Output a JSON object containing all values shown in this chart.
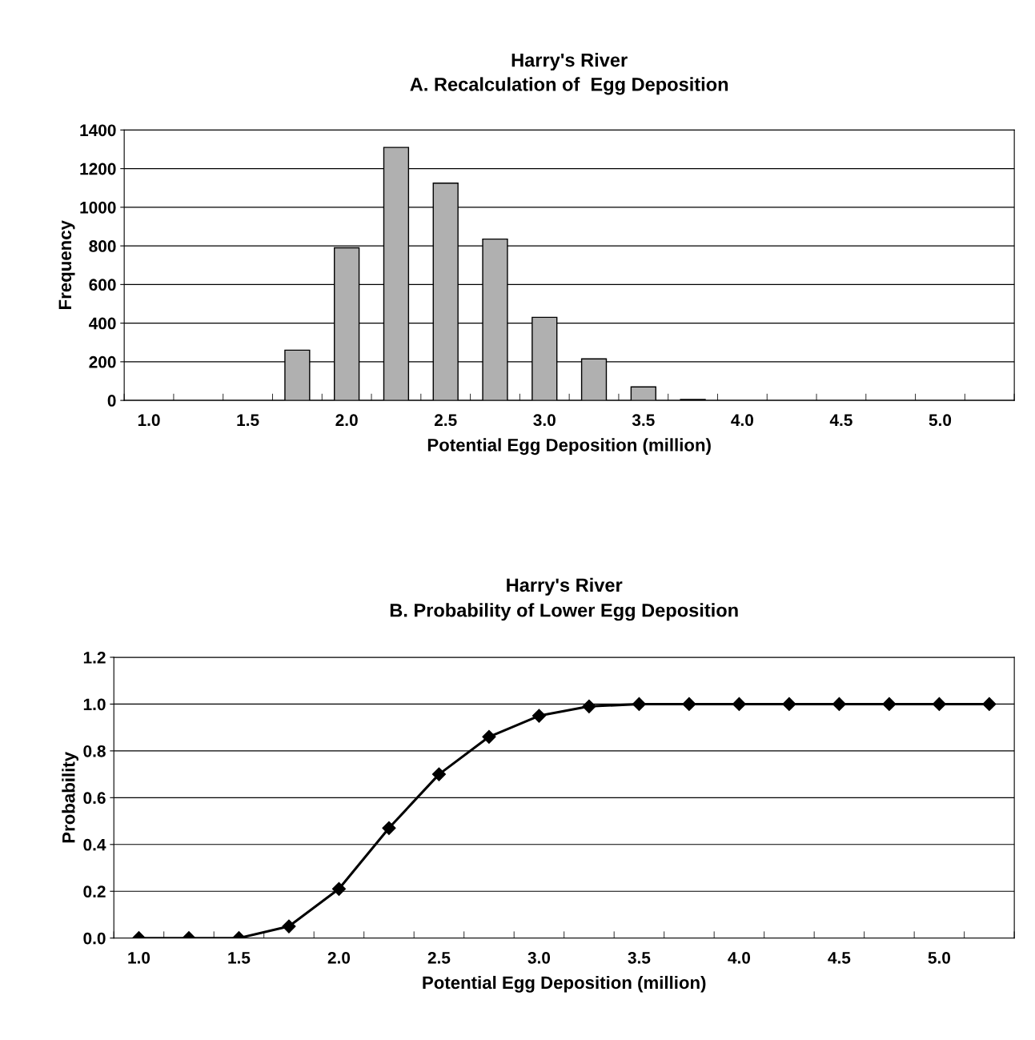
{
  "chart_data": [
    {
      "type": "bar",
      "title": "Harry's River",
      "subtitle": "A. Recalculation of  Egg Deposition",
      "xlabel": "Potential Egg Deposition (million)",
      "ylabel": "Frequency",
      "categories": [
        "1.0",
        null,
        "1.5",
        null,
        "2.0",
        null,
        "2.5",
        null,
        "3.0",
        null,
        "3.5",
        null,
        "4.0",
        null,
        "4.5",
        null,
        "5.0",
        null
      ],
      "values": [
        0,
        0,
        0,
        260,
        790,
        1310,
        1125,
        835,
        430,
        215,
        70,
        5,
        0,
        0,
        0,
        0,
        0,
        0
      ],
      "color": "#b0b0b0",
      "ylim": [
        0,
        1400
      ],
      "yticks": [
        0,
        200,
        400,
        600,
        800,
        1000,
        1200,
        1400
      ],
      "grid": "y",
      "legend": false
    },
    {
      "type": "line",
      "title": "Harry's River",
      "subtitle": "B. Probability of Lower Egg Deposition",
      "xlabel": "Potential Egg Deposition (million)",
      "ylabel": "Probability",
      "categories": [
        "1.0",
        null,
        "1.5",
        null,
        "2.0",
        null,
        "2.5",
        null,
        "3.0",
        null,
        "3.5",
        null,
        "4.0",
        null,
        "4.5",
        null,
        "5.0",
        null
      ],
      "values": [
        0,
        0,
        0,
        0.05,
        0.21,
        0.47,
        0.7,
        0.86,
        0.95,
        0.99,
        1.0,
        1.0,
        1.0,
        1.0,
        1.0,
        1.0,
        1.0,
        1.0
      ],
      "color": "#000000",
      "marker": "diamond",
      "line_style": "solid",
      "ylim": [
        0,
        1.2
      ],
      "yticks": [
        {
          "value": 0,
          "label": "0.0"
        },
        {
          "value": 0.2,
          "label": "0.2"
        },
        {
          "value": 0.4,
          "label": "0.4"
        },
        {
          "value": 0.6,
          "label": "0.6"
        },
        {
          "value": 0.8,
          "label": "0.8"
        },
        {
          "value": 1.0,
          "label": "1.0"
        },
        {
          "value": 1.2,
          "label": "1.2"
        }
      ],
      "grid": "y",
      "legend": false
    }
  ]
}
